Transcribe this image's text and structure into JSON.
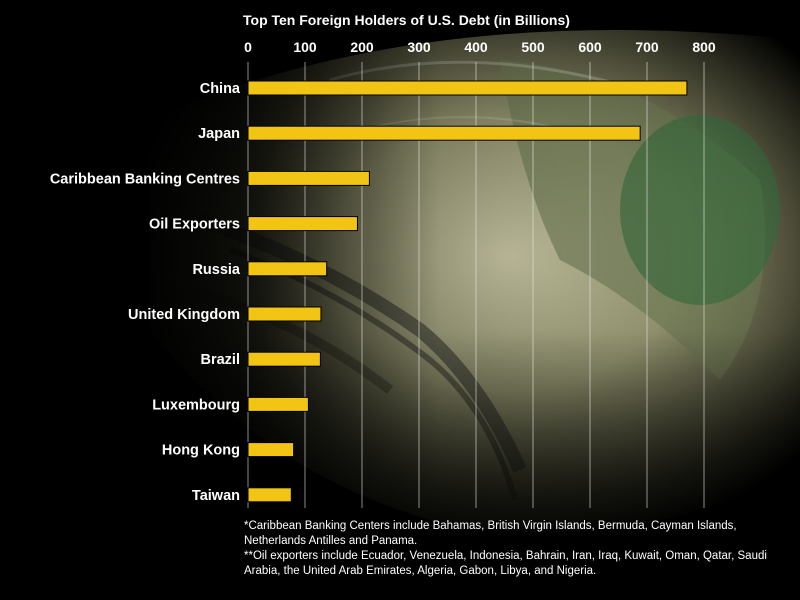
{
  "chart_data": {
    "type": "bar",
    "orientation": "horizontal",
    "title": "Top Ten Foreign Holders of U.S. Debt (in Billions)",
    "categories": [
      "China",
      "Japan",
      "Caribbean Banking Centres",
      "Oil Exporters",
      "Russia",
      "United Kingdom",
      "Brazil",
      "Luxembourg",
      "Hong Kong",
      "Taiwan"
    ],
    "values": [
      770,
      688,
      213,
      192,
      138,
      128,
      127,
      106,
      80,
      76
    ],
    "xticks": [
      0,
      100,
      200,
      300,
      400,
      500,
      600,
      700,
      800
    ],
    "xlim": [
      0,
      800
    ],
    "xaxis_position": "top",
    "grid": "vertical",
    "bar_color": "#f2c414"
  },
  "footnotes": [
    "*Caribbean Banking Centers include Bahamas, British Virgin Islands, Bermuda, Cayman Islands, Netherlands Antilles and Panama.",
    "**Oil exporters include Ecuador, Venezuela, Indonesia, Bahrain, Iran, Iraq, Kuwait, Oman, Qatar, Saudi Arabia, the United Arab Emirates, Algeria, Gabon, Libya, and Nigeria."
  ]
}
